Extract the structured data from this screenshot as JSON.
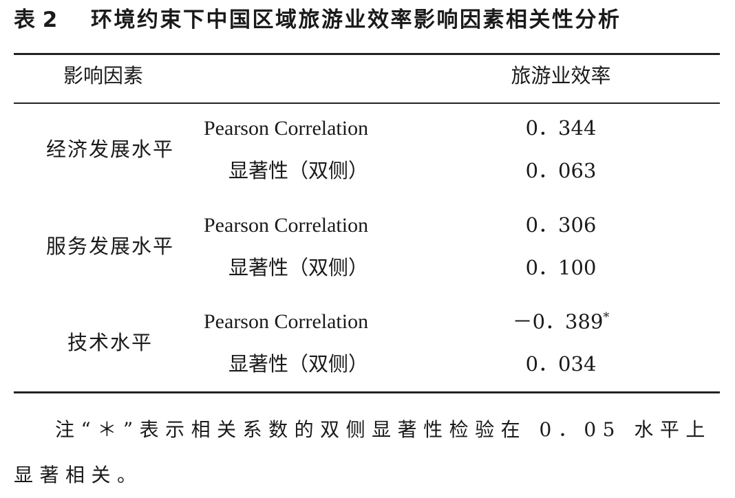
{
  "title": {
    "label": "表 2",
    "text": "环境约束下中国区域旅游业效率影响因素相关性分析"
  },
  "table": {
    "header": [
      "影响因素",
      "旅游业效率"
    ],
    "groups": [
      {
        "factor": "经济发展水平",
        "rows": [
          {
            "measure": "Pearson Correlation",
            "value": "0．344"
          },
          {
            "measure": "显著性（双侧）",
            "value": "0．063"
          }
        ]
      },
      {
        "factor": "服务发展水平",
        "rows": [
          {
            "measure": "Pearson Correlation",
            "value": "0．306"
          },
          {
            "measure": "显著性（双侧）",
            "value": "0．100"
          }
        ]
      },
      {
        "factor": "技术水平",
        "rows": [
          {
            "measure": "Pearson Correlation",
            "value": "－0．389",
            "marker": "*"
          },
          {
            "measure": "显著性（双侧）",
            "value": "0．034"
          }
        ]
      }
    ]
  },
  "note": "注“＊”表示相关系数的双侧显著性检验在 0．05 水平上显著相关。"
}
